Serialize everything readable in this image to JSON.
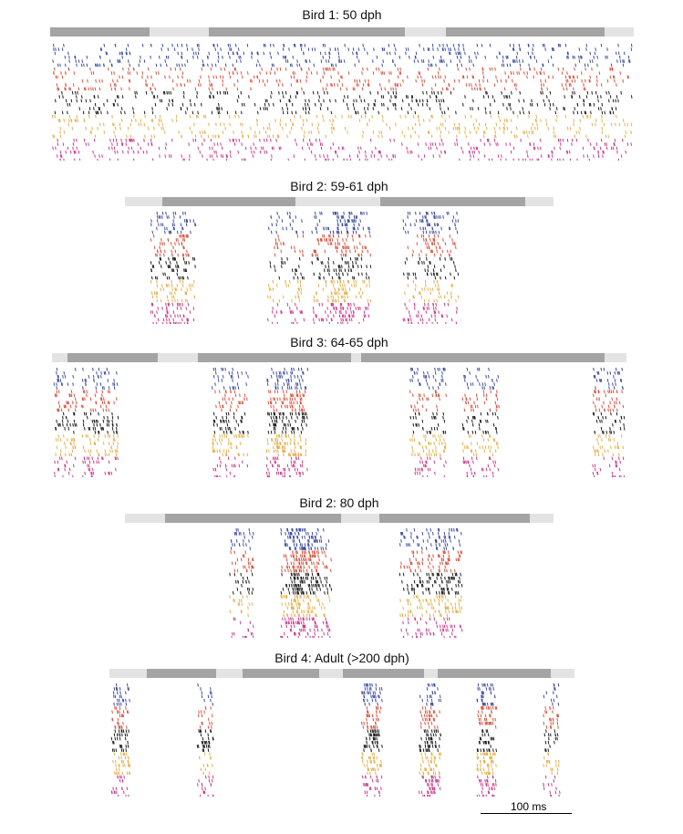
{
  "colors": {
    "bar_background": "#e3e3e3",
    "syllable_segment": "#a4a4a4",
    "rows": [
      "#3f4ea1",
      "#d9533f",
      "#1e1e1e",
      "#e5b04c",
      "#cc3d8b"
    ]
  },
  "panels": [
    {
      "title": "Bird 1: 50 dph",
      "syllable_segments_ms": [
        [
          0,
          107
        ],
        [
          171,
          383
        ],
        [
          427,
          599
        ]
      ],
      "duration_ms": 630,
      "row_density": [
        0.9,
        0.85,
        0.8,
        0.75,
        0.8
      ],
      "spread": "diffuse"
    },
    {
      "title": "Bird 2: 59-61 dph",
      "syllable_segments_ms": [
        [
          37,
          167
        ],
        [
          250,
          392
        ]
      ],
      "duration_ms": 420,
      "row_density": [
        0.7,
        0.6,
        0.55,
        0.6,
        0.7
      ],
      "spread": "clustered"
    },
    {
      "title": "Bird 3: 64-65 dph",
      "syllable_segments_ms": [
        [
          15,
          105
        ],
        [
          145,
          297
        ],
        [
          307,
          548
        ]
      ],
      "duration_ms": 570,
      "row_density": [
        0.6,
        0.65,
        0.7,
        0.75,
        0.55
      ],
      "spread": "clustered"
    },
    {
      "title": "Bird 2: 80 dph",
      "syllable_segments_ms": [
        [
          39,
          212
        ],
        [
          249,
          397
        ]
      ],
      "duration_ms": 420,
      "row_density": [
        0.6,
        0.6,
        0.65,
        0.55,
        0.5
      ],
      "spread": "tight"
    },
    {
      "title": "Bird 4: Adult (>200 dph)",
      "syllable_segments_ms": [
        [
          38,
          108
        ],
        [
          135,
          212
        ],
        [
          236,
          318
        ],
        [
          332,
          446
        ]
      ],
      "duration_ms": 470,
      "row_density": [
        0.45,
        0.5,
        0.6,
        0.55,
        0.45
      ],
      "spread": "sparse"
    }
  ],
  "scale_bar": {
    "label": "100 ms",
    "duration_ms": 100
  }
}
